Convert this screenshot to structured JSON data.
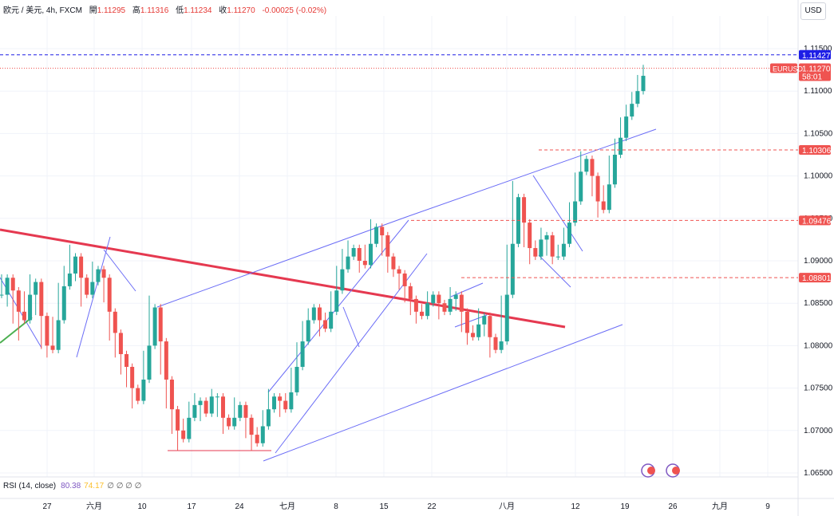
{
  "header": {
    "symbol": "欧元 / 美元, 4h, FXCM",
    "open_label": "開",
    "open": "1.11295",
    "high_label": "高",
    "high": "1.11316",
    "low_label": "低",
    "low": "1.11234",
    "close_label": "收",
    "close": "1.11270",
    "change": "-0.00025 (-0.02%)"
  },
  "currency_button": "USD",
  "rsi_panel": {
    "label": "RSI (14, close)",
    "value1": "80.38",
    "value2": "74.17",
    "extra": "∅ ∅ ∅ ∅"
  },
  "colors": {
    "up": "#26a69a",
    "down": "#ef5350",
    "trend": "#6a6cf6",
    "main_trend": "#e53950",
    "level": "#ef5350",
    "price_tag": "#ef5350",
    "top_tag": "#1e1ee6"
  },
  "chart_data": {
    "type": "candlestick",
    "symbol": "EURUSD",
    "timeframe": "4h",
    "y_ticks": [
      "1.11500",
      "1.11000",
      "1.10500",
      "1.10000",
      "1.09500",
      "1.09000",
      "1.08500",
      "1.08000",
      "1.07500",
      "1.07000",
      "1.06500"
    ],
    "ylim": [
      1.065,
      1.115
    ],
    "x_ticks": [
      "27",
      "六月",
      "10",
      "17",
      "24",
      "七月",
      "8",
      "15",
      "22",
      "八月",
      "12",
      "19",
      "26",
      "九月",
      "9"
    ],
    "price_tags": [
      {
        "label": "1.11427",
        "value": 1.11427,
        "kind": "top"
      },
      {
        "label": "1.11270",
        "value": 1.1127,
        "kind": "price",
        "symbol": "EURUSD",
        "countdown": "58:01"
      },
      {
        "label": "1.10306",
        "value": 1.10306,
        "kind": "level"
      },
      {
        "label": "1.09476",
        "value": 1.09476,
        "kind": "level"
      },
      {
        "label": "1.08801",
        "value": 1.08801,
        "kind": "level"
      }
    ],
    "ohlc_path": [
      [
        1.088,
        1.086
      ],
      [
        1.085,
        1.088
      ],
      [
        1.083,
        1.0865
      ],
      [
        1.081,
        1.084
      ],
      [
        1.086,
        1.083
      ],
      [
        1.088,
        1.086
      ],
      [
        1.084,
        1.0875
      ],
      [
        1.08,
        1.0835
      ],
      [
        1.079,
        1.08
      ],
      [
        1.083,
        1.0795
      ],
      [
        1.087,
        1.083
      ],
      [
        1.089,
        1.087
      ],
      [
        1.0915,
        1.0885
      ],
      [
        1.088,
        1.0905
      ],
      [
        1.085,
        1.088
      ],
      [
        1.088,
        1.086
      ],
      [
        1.0895,
        1.0875
      ],
      [
        1.088,
        1.089
      ],
      [
        1.0855,
        1.088
      ],
      [
        1.081,
        1.084
      ],
      [
        1.079,
        1.0815
      ],
      [
        1.077,
        1.079
      ],
      [
        1.0755,
        1.0775
      ],
      [
        1.073,
        1.075
      ],
      [
        1.0745,
        1.0735
      ],
      [
        1.079,
        1.076
      ],
      [
        1.0855,
        1.08
      ],
      [
        1.081,
        1.0845
      ],
      [
        1.077,
        1.0805
      ],
      [
        1.073,
        1.076
      ],
      [
        1.07,
        1.0725
      ],
      [
        1.068,
        1.07
      ],
      [
        1.071,
        1.069
      ],
      [
        1.073,
        1.0715
      ],
      [
        1.074,
        1.073
      ],
      [
        1.0715,
        1.0735
      ],
      [
        1.0735,
        1.072
      ],
      [
        1.0745,
        1.074
      ],
      [
        1.072,
        1.074
      ],
      [
        1.07,
        1.0715
      ],
      [
        1.071,
        1.0705
      ],
      [
        1.0735,
        1.0715
      ],
      [
        1.072,
        1.073
      ],
      [
        1.0695,
        1.0715
      ],
      [
        1.068,
        1.0695
      ],
      [
        1.07,
        1.0685
      ],
      [
        1.072,
        1.0705
      ],
      [
        1.0745,
        1.0725
      ],
      [
        1.0735,
        1.074
      ],
      [
        1.072,
        1.0735
      ],
      [
        1.074,
        1.0725
      ],
      [
        1.077,
        1.0745
      ],
      [
        1.08,
        1.0775
      ],
      [
        1.0825,
        1.0805
      ],
      [
        1.084,
        1.083
      ],
      [
        1.083,
        1.0845
      ],
      [
        1.0815,
        1.083
      ],
      [
        1.0835,
        1.082
      ],
      [
        1.086,
        1.084
      ],
      [
        1.089,
        1.0865
      ],
      [
        1.091,
        1.089
      ],
      [
        1.092,
        1.0905
      ],
      [
        1.0905,
        1.0915
      ],
      [
        1.089,
        1.09
      ],
      [
        1.0915,
        1.0895
      ],
      [
        1.0945,
        1.092
      ],
      [
        1.0935,
        1.094
      ],
      [
        1.091,
        1.093
      ],
      [
        1.089,
        1.0905
      ],
      [
        1.0885,
        1.089
      ],
      [
        1.087,
        1.0885
      ],
      [
        1.0855,
        1.087
      ],
      [
        1.084,
        1.0855
      ],
      [
        1.083,
        1.084
      ],
      [
        1.0845,
        1.0835
      ],
      [
        1.086,
        1.085
      ],
      [
        1.085,
        1.086
      ],
      [
        1.0835,
        1.085
      ],
      [
        1.085,
        1.084
      ],
      [
        1.0865,
        1.0855
      ],
      [
        1.0845,
        1.086
      ],
      [
        1.082,
        1.084
      ],
      [
        1.0805,
        1.0815
      ],
      [
        1.082,
        1.081
      ],
      [
        1.084,
        1.0825
      ],
      [
        1.0815,
        1.0835
      ],
      [
        1.079,
        1.081
      ],
      [
        1.08,
        1.0795
      ],
      [
        1.0855,
        1.0805
      ],
      [
        1.0915,
        1.086
      ],
      [
        1.099,
        1.092
      ],
      [
        1.0955,
        1.0975
      ],
      [
        1.092,
        1.0945
      ],
      [
        1.09,
        1.0915
      ],
      [
        1.092,
        1.0905
      ],
      [
        1.0935,
        1.0925
      ],
      [
        1.091,
        1.093
      ],
      [
        1.09,
        1.0905
      ],
      [
        1.0915,
        1.0905
      ],
      [
        1.0935,
        1.092
      ],
      [
        1.0965,
        1.0945
      ],
      [
        1.1,
        1.097
      ],
      [
        1.1025,
        1.1005
      ],
      [
        1.101,
        1.102
      ],
      [
        1.098,
        1.1
      ],
      [
        1.0955,
        1.097
      ],
      [
        1.0985,
        1.096
      ],
      [
        1.102,
        1.099
      ],
      [
        1.104,
        1.1025
      ],
      [
        1.1065,
        1.1045
      ],
      [
        1.108,
        1.107
      ],
      [
        1.1095,
        1.1085
      ],
      [
        1.1115,
        1.11
      ],
      [
        1.1127,
        1.1118
      ]
    ]
  }
}
